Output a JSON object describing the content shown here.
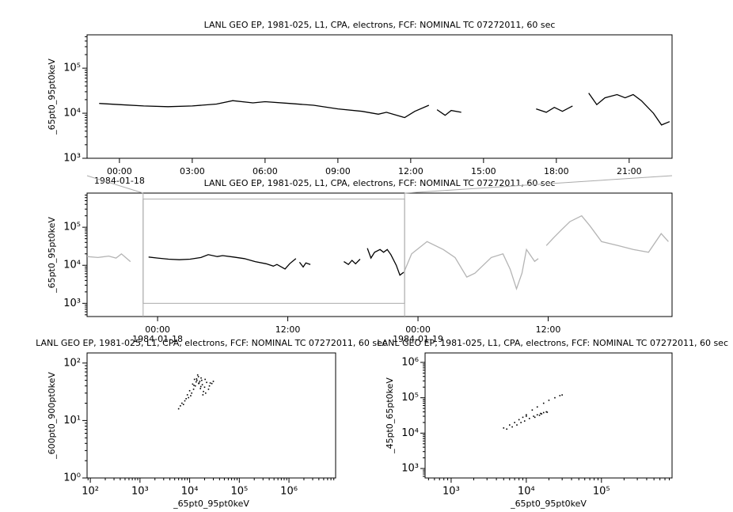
{
  "chart_data": [
    {
      "type": "line",
      "title": "LANL GEO EP, 1981-025, L1, CPA, electrons, FCF: NOMINAL TC 07272011, 60 sec",
      "y_label": "_65pt0_95pt0keV",
      "x_scale": "time",
      "y_scale": "log",
      "xlim": [
        "1984-01-17T22:40",
        "1984-01-18T22:46"
      ],
      "ylim": [
        1000,
        550000
      ],
      "xticks": [
        {
          "value": "1984-01-18T00:00",
          "label": "00:00"
        },
        {
          "value": "1984-01-18T03:00",
          "label": "03:00"
        },
        {
          "value": "1984-01-18T06:00",
          "label": "06:00"
        },
        {
          "value": "1984-01-18T09:00",
          "label": "09:00"
        },
        {
          "value": "1984-01-18T12:00",
          "label": "12:00"
        },
        {
          "value": "1984-01-18T15:00",
          "label": "15:00"
        },
        {
          "value": "1984-01-18T18:00",
          "label": "18:00"
        },
        {
          "value": "1984-01-18T21:00",
          "label": "21:00"
        }
      ],
      "date_labels": [
        {
          "value": "1984-01-18T00:00",
          "label": "1984-01-18"
        }
      ],
      "yticks": [
        {
          "value": 1000,
          "label": "10³"
        },
        {
          "value": 10000,
          "label": "10⁴"
        },
        {
          "value": 100000,
          "label": "10⁵"
        }
      ],
      "series": [
        {
          "color": "#000000",
          "x": [
            "1984-01-17T23:10",
            "1984-01-18T00:00",
            "1984-01-18T01:00",
            "1984-01-18T02:00",
            "1984-01-18T03:00",
            "1984-01-18T04:00",
            "1984-01-18T04:40",
            "1984-01-18T05:30",
            "1984-01-18T06:00",
            "1984-01-18T07:00",
            "1984-01-18T08:00",
            "1984-01-18T09:00",
            "1984-01-18T10:00",
            "1984-01-18T10:40",
            "1984-01-18T11:00",
            "1984-01-18T11:45",
            "1984-01-18T12:10",
            "1984-01-18T12:45",
            "1984-01-18T12:55",
            "1984-01-18T13:05",
            "1984-01-18T13:25",
            "1984-01-18T13:40",
            "1984-01-18T14:05",
            "1984-01-18T14:10",
            "1984-01-18T17:10",
            "1984-01-18T17:35",
            "1984-01-18T17:55",
            "1984-01-18T18:15",
            "1984-01-18T18:40",
            "1984-01-18T18:45",
            "1984-01-18T19:20",
            "1984-01-18T19:40",
            "1984-01-18T20:00",
            "1984-01-18T20:30",
            "1984-01-18T20:50",
            "1984-01-18T21:10",
            "1984-01-18T21:30",
            "1984-01-18T22:00",
            "1984-01-18T22:20",
            "1984-01-18T22:40"
          ],
          "values": [
            16500,
            15500,
            14500,
            14000,
            14500,
            16000,
            19000,
            17000,
            18000,
            16500,
            15000,
            12500,
            11000,
            9500,
            10500,
            8000,
            11000,
            15000,
            null,
            12000,
            9000,
            11500,
            10500,
            null,
            12500,
            10500,
            13500,
            11000,
            14500,
            null,
            28000,
            15500,
            22000,
            26000,
            22000,
            26000,
            19000,
            10000,
            5500,
            6500
          ]
        }
      ]
    },
    {
      "type": "line",
      "title": "LANL GEO EP, 1981-025, L1, CPA, electrons, FCF: NOMINAL TC 07272011, 60 sec",
      "y_label": "_65pt0_95pt0keV",
      "x_scale": "time",
      "y_scale": "log",
      "xlim": [
        "1984-01-17T17:30",
        "1984-01-19T23:25"
      ],
      "ylim": [
        450,
        790000
      ],
      "xticks": [
        {
          "value": "1984-01-18T00:00",
          "label": "00:00"
        },
        {
          "value": "1984-01-18T12:00",
          "label": "12:00"
        },
        {
          "value": "1984-01-19T00:00",
          "label": "00:00"
        },
        {
          "value": "1984-01-19T12:00",
          "label": "12:00"
        }
      ],
      "date_labels": [
        {
          "value": "1984-01-18T00:00",
          "label": "1984-01-18"
        },
        {
          "value": "1984-01-19T00:00",
          "label": "1984-01-19"
        }
      ],
      "yticks": [
        {
          "value": 1000,
          "label": "10³"
        },
        {
          "value": 10000,
          "label": "10⁴"
        },
        {
          "value": 100000,
          "label": "10⁵"
        }
      ],
      "series": [
        {
          "color": "#b4b4b4",
          "x": [
            "1984-01-17T17:30",
            "1984-01-17T18:30",
            "1984-01-17T19:30",
            "1984-01-17T20:10",
            "1984-01-17T20:40",
            "1984-01-17T21:10",
            "1984-01-17T21:30",
            "1984-01-18T12:00",
            "1984-01-18T22:40",
            "1984-01-18T23:25",
            "1984-01-19T00:50",
            "1984-01-19T02:20",
            "1984-01-19T03:25",
            "1984-01-19T04:30",
            "1984-01-19T05:15",
            "1984-01-19T06:45",
            "1984-01-19T07:50",
            "1984-01-19T08:30",
            "1984-01-19T09:05",
            "1984-01-19T09:35",
            "1984-01-19T10:00",
            "1984-01-19T10:45",
            "1984-01-19T11:05",
            "1984-01-19T11:30",
            "1984-01-19T11:50",
            "1984-01-19T12:30",
            "1984-01-19T13:15",
            "1984-01-19T14:00",
            "1984-01-19T15:05",
            "1984-01-19T15:50",
            "1984-01-19T16:55",
            "1984-01-19T18:25",
            "1984-01-19T19:50",
            "1984-01-19T21:15",
            "1984-01-19T22:25",
            "1984-01-19T23:05"
          ],
          "values": [
            17000,
            16000,
            17500,
            15500,
            20000,
            15000,
            12500,
            null,
            6200,
            20000,
            42000,
            26000,
            16000,
            4900,
            6200,
            16000,
            20000,
            7900,
            2400,
            6200,
            26000,
            12700,
            15000,
            null,
            33000,
            53000,
            87000,
            140000,
            200000,
            110000,
            42000,
            33000,
            26000,
            22000,
            68000,
            42000
          ]
        },
        {
          "color": "#000000",
          "x": [
            "1984-01-17T23:10",
            "1984-01-18T00:00",
            "1984-01-18T01:00",
            "1984-01-18T02:00",
            "1984-01-18T03:00",
            "1984-01-18T04:00",
            "1984-01-18T04:40",
            "1984-01-18T05:30",
            "1984-01-18T06:00",
            "1984-01-18T07:00",
            "1984-01-18T08:00",
            "1984-01-18T09:00",
            "1984-01-18T10:00",
            "1984-01-18T10:40",
            "1984-01-18T11:00",
            "1984-01-18T11:45",
            "1984-01-18T12:10",
            "1984-01-18T12:45",
            "1984-01-18T12:55",
            "1984-01-18T13:05",
            "1984-01-18T13:25",
            "1984-01-18T13:40",
            "1984-01-18T14:05",
            "1984-01-18T14:10",
            "1984-01-18T17:10",
            "1984-01-18T17:35",
            "1984-01-18T17:55",
            "1984-01-18T18:15",
            "1984-01-18T18:40",
            "1984-01-18T18:45",
            "1984-01-18T19:20",
            "1984-01-18T19:40",
            "1984-01-18T20:00",
            "1984-01-18T20:30",
            "1984-01-18T20:50",
            "1984-01-18T21:10",
            "1984-01-18T21:30",
            "1984-01-18T22:00",
            "1984-01-18T22:20",
            "1984-01-18T22:40"
          ],
          "values": [
            16500,
            15500,
            14500,
            14000,
            14500,
            16000,
            19000,
            17000,
            18000,
            16500,
            15000,
            12500,
            11000,
            9500,
            10500,
            8000,
            11000,
            15000,
            null,
            12000,
            9000,
            11500,
            10500,
            null,
            12500,
            10500,
            13500,
            11000,
            14500,
            null,
            28000,
            15500,
            22000,
            26000,
            22000,
            26000,
            19000,
            10000,
            5500,
            6500
          ]
        }
      ]
    },
    {
      "type": "scatter",
      "title": "LANL GEO EP, 1981-025, L1, CPA, electrons, FCF: NOMINAL TC 07272011, 60 sec",
      "x_label": "_65pt0_95pt0keV",
      "y_label": "_600pt0_900pt0keV",
      "x_scale": "log",
      "y_scale": "log",
      "xlim": [
        86,
        8700000
      ],
      "ylim": [
        1,
        150
      ],
      "xticks": [
        {
          "value": 100,
          "label": "10²"
        },
        {
          "value": 1000,
          "label": "10³"
        },
        {
          "value": 10000,
          "label": "10⁴"
        },
        {
          "value": 100000,
          "label": "10⁵"
        },
        {
          "value": 1000000,
          "label": "10⁶"
        }
      ],
      "yticks": [
        {
          "value": 1,
          "label": "10⁰"
        },
        {
          "value": 10,
          "label": "10¹"
        },
        {
          "value": 100,
          "label": "10²"
        }
      ],
      "series": [
        {
          "color": "#000000",
          "x": [
            14000,
            15500,
            17000,
            13000,
            16000,
            18000,
            12000,
            15000,
            20000,
            22000,
            11000,
            9000,
            8000,
            10000,
            25000,
            28000,
            7000,
            6500,
            9500,
            12500,
            14500,
            16500,
            19000,
            21000,
            13500,
            11500,
            17500,
            8500,
            7500,
            6000,
            24000,
            30000,
            18500,
            15200,
            13800,
            16800,
            12200,
            10500,
            20500,
            26000
          ],
          "values": [
            50,
            45,
            55,
            40,
            48,
            42,
            35,
            58,
            38,
            46,
            30,
            28,
            22,
            33,
            40,
            44,
            20,
            18,
            25,
            52,
            62,
            36,
            32,
            30,
            47,
            43,
            50,
            24,
            19,
            16,
            35,
            48,
            28,
            44,
            53,
            39,
            41,
            27,
            52,
            45
          ]
        }
      ]
    },
    {
      "type": "scatter",
      "title": "LANL GEO EP, 1981-025, L1, CPA, electrons, FCF: NOMINAL TC 07272011, 60 sec",
      "x_label": "_65pt0_95pt0keV",
      "y_label": "_45pt0_65pt0keV",
      "x_scale": "log",
      "y_scale": "log",
      "xlim": [
        450,
        870000
      ],
      "ylim": [
        540,
        1850000
      ],
      "xticks": [
        {
          "value": 1000,
          "label": "10³"
        },
        {
          "value": 10000,
          "label": "10⁴"
        },
        {
          "value": 100000,
          "label": "10⁵"
        }
      ],
      "yticks": [
        {
          "value": 1000,
          "label": "10³"
        },
        {
          "value": 10000,
          "label": "10⁴"
        },
        {
          "value": 100000,
          "label": "10⁵"
        },
        {
          "value": 1000000,
          "label": "10⁶"
        }
      ],
      "series": [
        {
          "color": "#000000",
          "x": [
            5000,
            6000,
            7000,
            8000,
            9000,
            10000,
            12000,
            14000,
            17000,
            20000,
            24000,
            28000,
            30000,
            5500,
            6500,
            7500,
            8500,
            9500,
            11000,
            12500,
            14000,
            15500,
            17000,
            18500,
            19000,
            10000,
            13000,
            15000,
            16000
          ],
          "values": [
            14000,
            17000,
            20000,
            24000,
            28000,
            33000,
            45000,
            55000,
            70000,
            85000,
            100000,
            115000,
            120000,
            13000,
            15000,
            17000,
            20000,
            22000,
            26000,
            30000,
            33000,
            36000,
            38000,
            40000,
            39000,
            30000,
            28000,
            32000,
            35000
          ]
        }
      ]
    }
  ]
}
